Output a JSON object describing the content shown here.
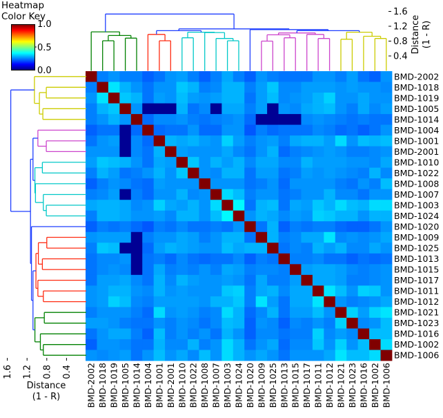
{
  "chart_data": {
    "type": "heatmap",
    "labels": [
      "BMD-2002",
      "BMD-1018",
      "BMD-1019",
      "BMD-1005",
      "BMD-1014",
      "BMD-1004",
      "BMD-1001",
      "BMD-2001",
      "BMD-1010",
      "BMD-1022",
      "BMD-1008",
      "BMD-1007",
      "BMD-1003",
      "BMD-1024",
      "BMD-1020",
      "BMD-1009",
      "BMD-1025",
      "BMD-1013",
      "BMD-1015",
      "BMD-1017",
      "BMD-1011",
      "BMD-1012",
      "BMD-1021",
      "BMD-1023",
      "BMD-1016",
      "BMD-1002",
      "BMD-1006"
    ],
    "matrix_upper_triangle": [
      [
        1,
        0.25,
        0.27,
        0.25,
        0.25,
        0.22,
        0.24,
        0.27,
        0.28,
        0.25,
        0.22,
        0.25,
        0.29,
        0.25,
        0.22,
        0.27,
        0.25,
        0.24,
        0.24,
        0.24,
        0.27,
        0.27,
        0.25,
        0.28,
        0.24,
        0.22,
        0.27
      ],
      [
        1,
        0.35,
        0.3,
        0.27,
        0.24,
        0.27,
        0.27,
        0.32,
        0.3,
        0.25,
        0.26,
        0.3,
        0.3,
        0.25,
        0.28,
        0.32,
        0.26,
        0.26,
        0.28,
        0.28,
        0.28,
        0.27,
        0.28,
        0.27,
        0.27,
        0.26
      ],
      [
        1,
        0.32,
        0.3,
        0.24,
        0.28,
        0.27,
        0.31,
        0.28,
        0.27,
        0.28,
        0.3,
        0.3,
        0.24,
        0.28,
        0.31,
        0.26,
        0.27,
        0.28,
        0.3,
        0.33,
        0.27,
        0.27,
        0.29,
        0.27,
        0.27
      ],
      [
        1,
        0.27,
        0.02,
        0.02,
        0.02,
        0.3,
        0.24,
        0.26,
        0.02,
        0.29,
        0.29,
        0.25,
        0.28,
        0.02,
        0.27,
        0.26,
        0.29,
        0.3,
        0.31,
        0.27,
        0.25,
        0.29,
        0.26,
        0.28
      ],
      [
        1,
        0.23,
        0.26,
        0.26,
        0.27,
        0.25,
        0.24,
        0.25,
        0.26,
        0.27,
        0.23,
        0.02,
        0.02,
        0.02,
        0.02,
        0.26,
        0.27,
        0.26,
        0.25,
        0.24,
        0.25,
        0.24,
        0.24
      ],
      [
        1,
        0.23,
        0.24,
        0.24,
        0.27,
        0.23,
        0.23,
        0.27,
        0.27,
        0.21,
        0.25,
        0.23,
        0.24,
        0.24,
        0.24,
        0.26,
        0.25,
        0.23,
        0.24,
        0.22,
        0.24,
        0.27
      ],
      [
        1,
        0.3,
        0.29,
        0.3,
        0.28,
        0.27,
        0.33,
        0.28,
        0.25,
        0.27,
        0.28,
        0.25,
        0.29,
        0.3,
        0.3,
        0.28,
        0.34,
        0.27,
        0.31,
        0.3,
        0.31
      ],
      [
        1,
        0.28,
        0.27,
        0.27,
        0.27,
        0.29,
        0.26,
        0.24,
        0.27,
        0.3,
        0.23,
        0.25,
        0.26,
        0.27,
        0.28,
        0.27,
        0.25,
        0.25,
        0.26,
        0.27
      ],
      [
        1,
        0.32,
        0.27,
        0.3,
        0.28,
        0.3,
        0.26,
        0.29,
        0.29,
        0.26,
        0.26,
        0.3,
        0.28,
        0.28,
        0.28,
        0.27,
        0.27,
        0.26,
        0.29
      ],
      [
        1,
        0.27,
        0.26,
        0.3,
        0.3,
        0.24,
        0.28,
        0.28,
        0.24,
        0.25,
        0.28,
        0.27,
        0.28,
        0.27,
        0.26,
        0.25,
        0.3,
        0.26
      ],
      [
        1,
        0.27,
        0.27,
        0.27,
        0.24,
        0.25,
        0.27,
        0.23,
        0.27,
        0.27,
        0.27,
        0.27,
        0.25,
        0.24,
        0.27,
        0.25,
        0.31
      ],
      [
        1,
        0.34,
        0.31,
        0.25,
        0.27,
        0.27,
        0.24,
        0.25,
        0.27,
        0.27,
        0.3,
        0.26,
        0.26,
        0.24,
        0.27,
        0.27
      ],
      [
        1,
        0.37,
        0.24,
        0.3,
        0.31,
        0.24,
        0.29,
        0.28,
        0.32,
        0.3,
        0.34,
        0.31,
        0.3,
        0.34,
        0.34
      ],
      [
        1,
        0.27,
        0.3,
        0.29,
        0.26,
        0.28,
        0.27,
        0.33,
        0.32,
        0.3,
        0.3,
        0.27,
        0.3,
        0.3
      ],
      [
        1,
        0.24,
        0.3,
        0.22,
        0.25,
        0.24,
        0.25,
        0.25,
        0.23,
        0.22,
        0.22,
        0.24,
        0.27
      ],
      [
        1,
        0.3,
        0.25,
        0.26,
        0.29,
        0.29,
        0.35,
        0.26,
        0.27,
        0.26,
        0.27,
        0.29
      ],
      [
        1,
        0.24,
        0.26,
        0.25,
        0.3,
        0.28,
        0.3,
        0.26,
        0.26,
        0.29,
        0.27
      ],
      [
        1,
        0.25,
        0.25,
        0.26,
        0.24,
        0.24,
        0.22,
        0.24,
        0.23,
        0.24
      ],
      [
        1,
        0.28,
        0.29,
        0.29,
        0.28,
        0.26,
        0.25,
        0.26,
        0.27
      ],
      [
        1,
        0.29,
        0.29,
        0.28,
        0.25,
        0.25,
        0.26,
        0.27
      ],
      [
        1,
        0.35,
        0.31,
        0.27,
        0.33,
        0.32,
        0.27
      ],
      [
        1,
        0.27,
        0.25,
        0.26,
        0.27,
        0.29
      ],
      [
        1,
        0.33,
        0.28,
        0.33,
        0.35
      ],
      [
        1,
        0.26,
        0.27,
        0.31
      ],
      [
        1,
        0.31,
        0.31
      ],
      [
        1,
        0.34
      ],
      [
        1
      ]
    ],
    "colormap": "jet",
    "value_range": [
      0,
      1
    ],
    "dendrogram": [
      [
        0,
        [
          [
            1,
            2,
            0.81
          ],
          [
            3,
            4,
            0.88
          ],
          0.95
        ],
        1.05
      ],
      [
        [
          [
            5,
            [
              6,
              7,
              0.81
            ],
            0.98
          ],
          [
            [
              8,
              9,
              0.89
            ],
            [
              10,
              [
                11,
                [
                  12,
                  13,
                  0.81
                ],
                0.87
              ],
              1.03
            ],
            1.04
          ],
          1.08
        ],
        [
          14,
          [
            [
              [
                [
                  15,
                  16,
                  0.8
                ],
                [
                  17,
                  18,
                  0.89
                ],
                0.97
              ],
              [
                19,
                [
                  20,
                  21,
                  0.87
                ],
                0.98
              ],
              1.02
            ],
            [
              [
                22,
                23,
                0.85
              ],
              [
                24,
                [
                  25,
                  26,
                  0.87
                ],
                0.93
              ],
              1.04
            ],
            1.08
          ],
          1.11
        ],
        1.13
      ],
      1.53
    ],
    "link_color": "#1f3fff",
    "column_clusters": [
      {
        "first": 0,
        "last": 4,
        "color": "#008000"
      },
      {
        "first": 5,
        "last": 7,
        "color": "#ff2a10"
      },
      {
        "first": 8,
        "last": 13,
        "color": "#00c8c8"
      },
      {
        "first": 15,
        "last": 21,
        "color": "#cc44cc"
      },
      {
        "first": 22,
        "last": 26,
        "color": "#cccc00"
      }
    ],
    "row_clusters": [
      {
        "first": 0,
        "last": 4,
        "color": "#cccc00"
      },
      {
        "first": 5,
        "last": 7,
        "color": "#cc44cc"
      },
      {
        "first": 8,
        "last": 13,
        "color": "#00c8c8"
      },
      {
        "first": 15,
        "last": 21,
        "color": "#ff2a10"
      },
      {
        "first": 22,
        "last": 26,
        "color": "#008000"
      }
    ],
    "dendrogram_axis": {
      "ticks": [
        "1.6",
        "1.2",
        "0.8",
        "0.4"
      ],
      "tick_values": [
        1.6,
        1.2,
        0.8,
        0.4
      ],
      "title": "Distance",
      "subtitle": "(1 - R)"
    },
    "color_key": {
      "title_line1": "Heatmap",
      "title_line2": "Color Key",
      "ticks": [
        "1.0",
        "0.5",
        "0.0"
      ]
    }
  }
}
